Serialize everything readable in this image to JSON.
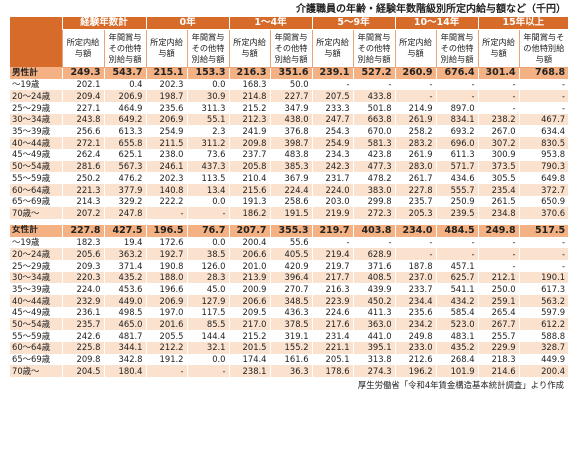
{
  "title": "介護職員の年齢・経験年数階級別所定内給与額など（千円）",
  "source": "厚生労働省「令和4年賃金構造基本統計調査」より作成",
  "groups": [
    "経験年数計",
    "0年",
    "1〜4年",
    "5〜9年",
    "10〜14年",
    "15年以上"
  ],
  "subheaders": [
    "所定内給与額",
    "年間賞与その他特別給与額"
  ],
  "sections": [
    {
      "rows": [
        {
          "label": "男性計",
          "total": true,
          "values": [
            "249.3",
            "543.7",
            "215.1",
            "153.3",
            "216.3",
            "351.6",
            "239.1",
            "527.2",
            "260.9",
            "676.4",
            "301.4",
            "768.8"
          ]
        },
        {
          "label": "〜19歳",
          "values": [
            "202.1",
            "0.4",
            "202.3",
            "0.0",
            "168.3",
            "50.0",
            "-",
            "-",
            "-",
            "-",
            "-",
            "-"
          ]
        },
        {
          "label": "20〜24歳",
          "values": [
            "209.4",
            "206.9",
            "198.7",
            "30.9",
            "214.8",
            "227.7",
            "207.5",
            "433.8",
            "-",
            "-",
            "-",
            "-"
          ]
        },
        {
          "label": "25〜29歳",
          "values": [
            "227.1",
            "464.9",
            "235.6",
            "311.3",
            "215.2",
            "347.9",
            "233.3",
            "501.8",
            "214.9",
            "897.0",
            "-",
            "-"
          ]
        },
        {
          "label": "30〜34歳",
          "values": [
            "243.8",
            "649.2",
            "206.9",
            "55.1",
            "212.3",
            "438.0",
            "247.7",
            "663.8",
            "261.9",
            "834.1",
            "238.2",
            "467.7"
          ]
        },
        {
          "label": "35〜39歳",
          "values": [
            "256.6",
            "613.3",
            "254.9",
            "2.3",
            "241.9",
            "376.8",
            "254.3",
            "670.0",
            "258.2",
            "693.2",
            "267.0",
            "634.4"
          ]
        },
        {
          "label": "40〜44歳",
          "values": [
            "272.1",
            "655.8",
            "211.5",
            "311.2",
            "209.8",
            "398.7",
            "254.9",
            "581.3",
            "283.2",
            "696.0",
            "307.2",
            "830.5"
          ]
        },
        {
          "label": "45〜49歳",
          "values": [
            "262.4",
            "625.1",
            "238.0",
            "73.6",
            "237.7",
            "483.8",
            "234.3",
            "423.8",
            "261.9",
            "611.3",
            "300.9",
            "953.8"
          ]
        },
        {
          "label": "50〜54歳",
          "values": [
            "281.6",
            "567.3",
            "246.1",
            "437.3",
            "205.8",
            "385.3",
            "242.3",
            "477.3",
            "283.0",
            "571.7",
            "373.5",
            "790.3"
          ]
        },
        {
          "label": "55〜59歳",
          "values": [
            "250.2",
            "476.2",
            "202.3",
            "113.5",
            "210.4",
            "367.9",
            "231.7",
            "478.2",
            "261.7",
            "434.6",
            "305.5",
            "649.8"
          ]
        },
        {
          "label": "60〜64歳",
          "values": [
            "221.3",
            "377.9",
            "140.8",
            "13.4",
            "215.6",
            "224.4",
            "224.0",
            "383.0",
            "227.8",
            "555.7",
            "235.4",
            "372.7"
          ]
        },
        {
          "label": "65〜69歳",
          "values": [
            "214.3",
            "329.2",
            "222.2",
            "0.0",
            "191.3",
            "258.6",
            "203.0",
            "299.8",
            "235.7",
            "250.9",
            "261.5",
            "650.9"
          ]
        },
        {
          "label": "70歳〜",
          "values": [
            "207.2",
            "247.8",
            "-",
            "-",
            "186.2",
            "191.5",
            "219.9",
            "272.3",
            "205.3",
            "239.5",
            "234.8",
            "370.6"
          ]
        }
      ]
    },
    {
      "rows": [
        {
          "label": "女性計",
          "total": true,
          "values": [
            "227.8",
            "427.5",
            "196.5",
            "76.7",
            "207.7",
            "355.3",
            "219.7",
            "403.8",
            "234.0",
            "484.5",
            "249.8",
            "517.5"
          ]
        },
        {
          "label": "〜19歳",
          "values": [
            "182.3",
            "19.4",
            "172.6",
            "0.0",
            "200.4",
            "55.6",
            "-",
            "-",
            "-",
            "-",
            "-",
            "-"
          ]
        },
        {
          "label": "20〜24歳",
          "values": [
            "205.6",
            "363.2",
            "192.7",
            "38.5",
            "206.6",
            "405.5",
            "219.4",
            "628.9",
            "-",
            "-",
            "-",
            "-"
          ]
        },
        {
          "label": "25〜29歳",
          "values": [
            "209.3",
            "371.4",
            "190.8",
            "126.0",
            "201.0",
            "420.9",
            "219.7",
            "371.6",
            "187.8",
            "457.1",
            "-",
            "-"
          ]
        },
        {
          "label": "30〜34歳",
          "values": [
            "220.3",
            "435.2",
            "188.0",
            "28.3",
            "213.9",
            "396.4",
            "217.7",
            "408.5",
            "237.0",
            "625.7",
            "212.1",
            "190.1"
          ]
        },
        {
          "label": "35〜39歳",
          "values": [
            "224.0",
            "453.6",
            "196.6",
            "45.0",
            "200.9",
            "270.7",
            "216.3",
            "439.9",
            "233.7",
            "541.1",
            "250.0",
            "617.3"
          ]
        },
        {
          "label": "40〜44歳",
          "values": [
            "232.9",
            "449.0",
            "206.9",
            "127.9",
            "206.6",
            "348.5",
            "223.9",
            "450.2",
            "234.4",
            "434.2",
            "259.1",
            "563.2"
          ]
        },
        {
          "label": "45〜49歳",
          "values": [
            "236.1",
            "498.5",
            "197.0",
            "117.5",
            "209.5",
            "436.3",
            "224.6",
            "411.3",
            "235.6",
            "585.4",
            "265.4",
            "597.9"
          ]
        },
        {
          "label": "50〜54歳",
          "values": [
            "235.7",
            "465.0",
            "201.6",
            "85.5",
            "217.0",
            "378.5",
            "217.6",
            "363.0",
            "234.2",
            "523.0",
            "267.7",
            "612.2"
          ]
        },
        {
          "label": "55〜59歳",
          "values": [
            "242.6",
            "481.7",
            "205.5",
            "144.4",
            "215.2",
            "319.1",
            "231.4",
            "441.0",
            "249.8",
            "483.1",
            "255.7",
            "588.8"
          ]
        },
        {
          "label": "60〜64歳",
          "values": [
            "225.8",
            "344.1",
            "212.2",
            "32.1",
            "201.5",
            "155.2",
            "221.1",
            "395.1",
            "233.0",
            "435.2",
            "229.9",
            "328.7"
          ]
        },
        {
          "label": "65〜69歳",
          "values": [
            "209.8",
            "342.8",
            "191.2",
            "0.0",
            "174.4",
            "161.6",
            "205.1",
            "313.8",
            "212.6",
            "268.4",
            "218.3",
            "449.9"
          ]
        },
        {
          "label": "70歳〜",
          "values": [
            "204.5",
            "180.4",
            "-",
            "-",
            "238.1",
            "36.3",
            "178.6",
            "274.3",
            "196.2",
            "101.9",
            "214.6",
            "200.4"
          ]
        }
      ]
    }
  ]
}
